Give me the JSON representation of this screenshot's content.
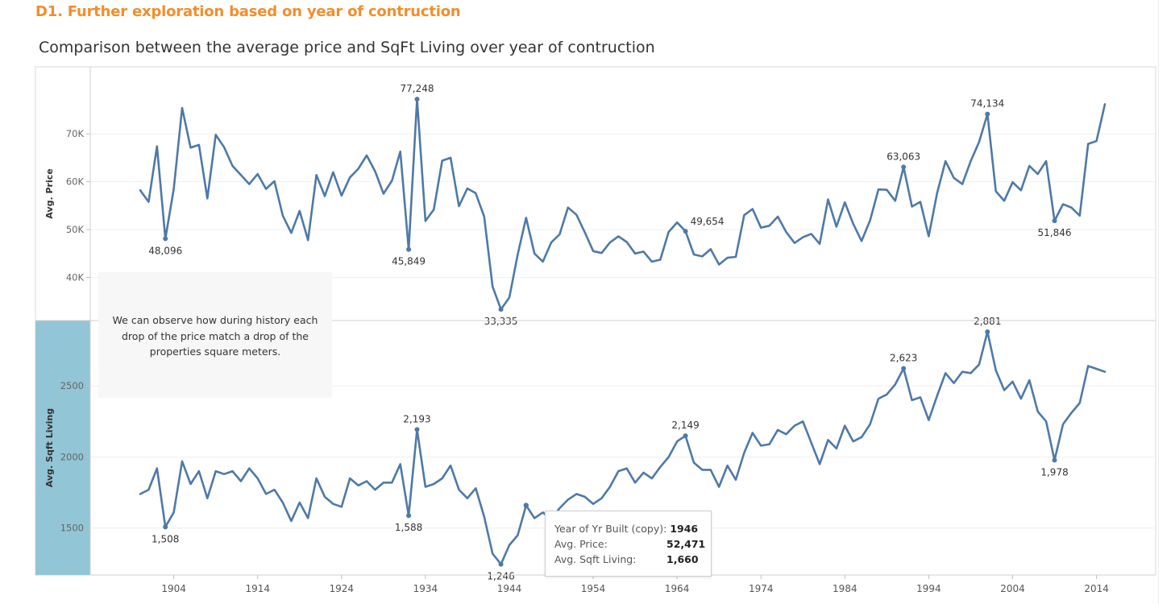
{
  "dashboard_title": "D1. Further exploration based on year of contruction",
  "chart_title": "Comparison between the average price and SqFt Living over year of contruction",
  "colors": {
    "title_orange": "#f28e2b",
    "line_blue": "#4e79a7",
    "highlight_band": "#92c5d6",
    "annotation_bg": "#f7f7f7"
  },
  "annotation": {
    "text": "We can observe how during history each drop of the price match a drop of the properties square meters."
  },
  "tooltip": {
    "row1_label": "Year of Yr Built (copy):",
    "row1_value": "1946",
    "row2_label": "Avg. Price:",
    "row2_value": "52,471",
    "row3_label": "Avg. Sqft Living:",
    "row3_value": "1,660"
  },
  "chart_data": {
    "type": "line",
    "x": [
      1900,
      1901,
      1902,
      1903,
      1904,
      1905,
      1906,
      1907,
      1908,
      1909,
      1910,
      1911,
      1912,
      1913,
      1914,
      1915,
      1916,
      1917,
      1918,
      1919,
      1920,
      1921,
      1922,
      1923,
      1924,
      1925,
      1926,
      1927,
      1928,
      1929,
      1930,
      1931,
      1932,
      1933,
      1934,
      1935,
      1936,
      1937,
      1938,
      1939,
      1940,
      1941,
      1942,
      1943,
      1944,
      1945,
      1946,
      1947,
      1948,
      1949,
      1950,
      1951,
      1952,
      1953,
      1954,
      1955,
      1956,
      1957,
      1958,
      1959,
      1960,
      1961,
      1962,
      1963,
      1964,
      1965,
      1966,
      1967,
      1968,
      1969,
      1970,
      1971,
      1972,
      1973,
      1974,
      1975,
      1976,
      1977,
      1978,
      1979,
      1980,
      1981,
      1982,
      1983,
      1984,
      1985,
      1986,
      1987,
      1988,
      1989,
      1990,
      1991,
      1992,
      1993,
      1994,
      1995,
      1996,
      1997,
      1998,
      1999,
      2000,
      2001,
      2002,
      2003,
      2004,
      2005,
      2006,
      2007,
      2008,
      2009,
      2010,
      2011,
      2012,
      2013,
      2014,
      2015
    ],
    "xticks": [
      1904,
      1914,
      1924,
      1934,
      1944,
      1954,
      1964,
      1974,
      1984,
      1994,
      2004,
      2014
    ],
    "panels": [
      {
        "ylabel": "Avg. Price",
        "ylim": [
          31000,
          84000
        ],
        "yticks": [
          40000,
          50000,
          60000,
          70000
        ],
        "ytick_labels": [
          "40K",
          "50K",
          "60K",
          "70K"
        ],
        "values": [
          58200,
          55800,
          67400,
          48096,
          58500,
          75400,
          67100,
          67700,
          56500,
          69800,
          67200,
          63300,
          61400,
          59500,
          61600,
          58500,
          60100,
          52900,
          49300,
          53900,
          47800,
          61400,
          57000,
          62000,
          57100,
          60900,
          62700,
          65500,
          62200,
          57500,
          60200,
          66300,
          45849,
          77248,
          51800,
          54200,
          64400,
          65000,
          54900,
          58600,
          57600,
          52700,
          38100,
          33335,
          35800,
          44800,
          52471,
          45000,
          43300,
          47300,
          49000,
          54600,
          53100,
          49400,
          45500,
          45100,
          47300,
          48600,
          47400,
          45000,
          45400,
          43300,
          43700,
          49500,
          51500,
          49654,
          44800,
          44400,
          45900,
          42700,
          44100,
          44300,
          53000,
          54300,
          50400,
          50800,
          52700,
          49500,
          47200,
          48400,
          49100,
          47000,
          56300,
          50600,
          55700,
          51200,
          47600,
          51900,
          58400,
          58300,
          56000,
          63063,
          54800,
          55800,
          48600,
          57600,
          64300,
          60800,
          59500,
          64300,
          68300,
          74134,
          58000,
          56000,
          59900,
          58200,
          63300,
          61600,
          64300,
          51846,
          55300,
          54600,
          52900,
          67900,
          68500,
          76200
        ],
        "labels": [
          {
            "x": 1903,
            "text": "48,096",
            "pos": "below"
          },
          {
            "x": 1932,
            "text": "45,849",
            "pos": "below"
          },
          {
            "x": 1933,
            "text": "77,248",
            "pos": "above"
          },
          {
            "x": 1943,
            "text": "33,335",
            "pos": "below"
          },
          {
            "x": 1965,
            "text": "49,654",
            "pos": "right"
          },
          {
            "x": 1991,
            "text": "63,063",
            "pos": "above"
          },
          {
            "x": 2001,
            "text": "74,134",
            "pos": "above"
          },
          {
            "x": 2009,
            "text": "51,846",
            "pos": "below"
          }
        ]
      },
      {
        "ylabel": "Avg. Sqft Living",
        "ylim": [
          1170,
          2960
        ],
        "yticks": [
          1500,
          2000,
          2500
        ],
        "ytick_labels": [
          "1500",
          "2000",
          "2500"
        ],
        "values": [
          1740,
          1770,
          1920,
          1508,
          1610,
          1970,
          1810,
          1900,
          1710,
          1900,
          1880,
          1900,
          1830,
          1920,
          1850,
          1740,
          1770,
          1680,
          1550,
          1680,
          1570,
          1850,
          1720,
          1670,
          1650,
          1850,
          1800,
          1830,
          1770,
          1820,
          1820,
          1950,
          1588,
          2193,
          1790,
          1810,
          1850,
          1940,
          1770,
          1710,
          1780,
          1580,
          1320,
          1246,
          1380,
          1450,
          1660,
          1570,
          1610,
          1560,
          1640,
          1700,
          1740,
          1720,
          1670,
          1710,
          1790,
          1900,
          1920,
          1820,
          1890,
          1850,
          1930,
          2000,
          2110,
          2149,
          1960,
          1910,
          1910,
          1790,
          1940,
          1840,
          2030,
          2170,
          2080,
          2090,
          2190,
          2160,
          2220,
          2250,
          2100,
          1950,
          2120,
          2060,
          2220,
          2110,
          2140,
          2230,
          2410,
          2440,
          2510,
          2623,
          2400,
          2420,
          2260,
          2430,
          2590,
          2520,
          2600,
          2590,
          2650,
          2881,
          2610,
          2470,
          2530,
          2410,
          2540,
          2320,
          2250,
          1978,
          2230,
          2310,
          2380,
          2640,
          2620,
          2600
        ],
        "labels": [
          {
            "x": 1903,
            "text": "1,508",
            "pos": "below"
          },
          {
            "x": 1932,
            "text": "1,588",
            "pos": "below"
          },
          {
            "x": 1933,
            "text": "2,193",
            "pos": "above"
          },
          {
            "x": 1943,
            "text": "1,246",
            "pos": "below"
          },
          {
            "x": 1965,
            "text": "2,149",
            "pos": "above"
          },
          {
            "x": 1991,
            "text": "2,623",
            "pos": "above"
          },
          {
            "x": 2001,
            "text": "2,881",
            "pos": "above"
          },
          {
            "x": 2009,
            "text": "1,978",
            "pos": "below"
          }
        ],
        "highlight_x": 1946
      }
    ],
    "grid": true,
    "legend": "none"
  }
}
